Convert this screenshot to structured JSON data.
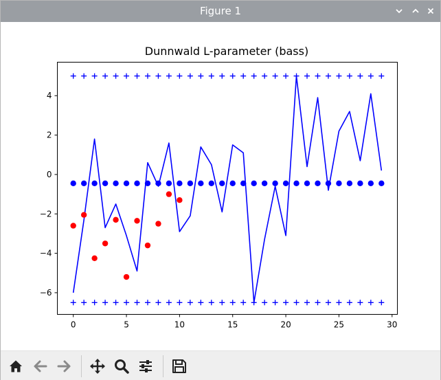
{
  "window": {
    "title": "Figure 1",
    "controls": [
      "chevron-down-icon",
      "chevron-up-icon",
      "close-icon"
    ]
  },
  "toolbar": {
    "buttons": [
      {
        "name": "home-button",
        "icon": "home-icon"
      },
      {
        "name": "back-button",
        "icon": "arrow-left-icon"
      },
      {
        "name": "forward-button",
        "icon": "arrow-right-icon"
      },
      {
        "name": "pan-button",
        "icon": "move-icon"
      },
      {
        "name": "zoom-button",
        "icon": "magnifier-icon"
      },
      {
        "name": "subplots-button",
        "icon": "sliders-icon"
      },
      {
        "name": "save-button",
        "icon": "floppy-disk-icon"
      }
    ]
  },
  "colors": {
    "line": "#0000ff",
    "markers_red": "#ff0000",
    "titlebar": "#9a9ea3",
    "toolbar_bg": "#efefef"
  },
  "chart_data": {
    "type": "line",
    "title": "Dunnwald L-parameter (bass)",
    "xlabel": "",
    "ylabel": "",
    "xlim": [
      -1.5,
      30.5
    ],
    "ylim": [
      -7.1,
      5.7
    ],
    "xticks": [
      0,
      5,
      10,
      15,
      20,
      25,
      30
    ],
    "yticks": [
      -6,
      -4,
      -2,
      0,
      2,
      4
    ],
    "grid": false,
    "series": [
      {
        "style": "line",
        "color": "#0000ff",
        "x": [
          0,
          1,
          2,
          3,
          4,
          5,
          6,
          7,
          8,
          9,
          10,
          11,
          12,
          13,
          14,
          15,
          16,
          17,
          18,
          19,
          20,
          21,
          22,
          23,
          24,
          25,
          26,
          27,
          28,
          29
        ],
        "y": [
          -6.0,
          -2.3,
          1.8,
          -2.7,
          -1.5,
          -3.1,
          -4.9,
          0.6,
          -0.6,
          1.6,
          -2.9,
          -2.1,
          1.4,
          0.5,
          -1.9,
          1.5,
          1.1,
          -6.5,
          -3.3,
          -0.6,
          -3.1,
          5.0,
          0.4,
          3.9,
          -0.8,
          2.2,
          3.2,
          0.7,
          4.1,
          0.2
        ]
      },
      {
        "style": "marker-plus",
        "color": "#0000ff",
        "x": [
          0,
          1,
          2,
          3,
          4,
          5,
          6,
          7,
          8,
          9,
          10,
          11,
          12,
          13,
          14,
          15,
          16,
          17,
          18,
          19,
          20,
          21,
          22,
          23,
          24,
          25,
          26,
          27,
          28,
          29
        ],
        "y": [
          5,
          5,
          5,
          5,
          5,
          5,
          5,
          5,
          5,
          5,
          5,
          5,
          5,
          5,
          5,
          5,
          5,
          5,
          5,
          5,
          5,
          5,
          5,
          5,
          5,
          5,
          5,
          5,
          5,
          5
        ]
      },
      {
        "style": "marker-plus",
        "color": "#0000ff",
        "x": [
          0,
          1,
          2,
          3,
          4,
          5,
          6,
          7,
          8,
          9,
          10,
          11,
          12,
          13,
          14,
          15,
          16,
          17,
          18,
          19,
          20,
          21,
          22,
          23,
          24,
          25,
          26,
          27,
          28,
          29
        ],
        "y": [
          -6.5,
          -6.5,
          -6.5,
          -6.5,
          -6.5,
          -6.5,
          -6.5,
          -6.5,
          -6.5,
          -6.5,
          -6.5,
          -6.5,
          -6.5,
          -6.5,
          -6.5,
          -6.5,
          -6.5,
          -6.5,
          -6.5,
          -6.5,
          -6.5,
          -6.5,
          -6.5,
          -6.5,
          -6.5,
          -6.5,
          -6.5,
          -6.5,
          -6.5,
          -6.5
        ]
      },
      {
        "style": "marker-dot",
        "color": "#0000ff",
        "x": [
          0,
          1,
          2,
          3,
          4,
          5,
          6,
          7,
          8,
          9,
          10,
          11,
          12,
          13,
          14,
          15,
          16,
          17,
          18,
          19,
          20,
          21,
          22,
          23,
          24,
          25,
          26,
          27,
          28,
          29
        ],
        "y": [
          -0.45,
          -0.45,
          -0.45,
          -0.45,
          -0.45,
          -0.45,
          -0.45,
          -0.45,
          -0.45,
          -0.45,
          -0.45,
          -0.45,
          -0.45,
          -0.45,
          -0.45,
          -0.45,
          -0.45,
          -0.45,
          -0.45,
          -0.45,
          -0.45,
          -0.45,
          -0.45,
          -0.45,
          -0.45,
          -0.45,
          -0.45,
          -0.45,
          -0.45,
          -0.45
        ]
      },
      {
        "style": "marker-dot",
        "color": "#ff0000",
        "x": [
          0,
          1,
          2,
          3,
          4,
          5,
          6,
          7,
          8,
          9,
          10
        ],
        "y": [
          -2.6,
          -2.05,
          -4.25,
          -3.5,
          -2.3,
          -5.2,
          -2.35,
          -3.6,
          -2.5,
          -1.0,
          -1.3
        ]
      }
    ]
  }
}
